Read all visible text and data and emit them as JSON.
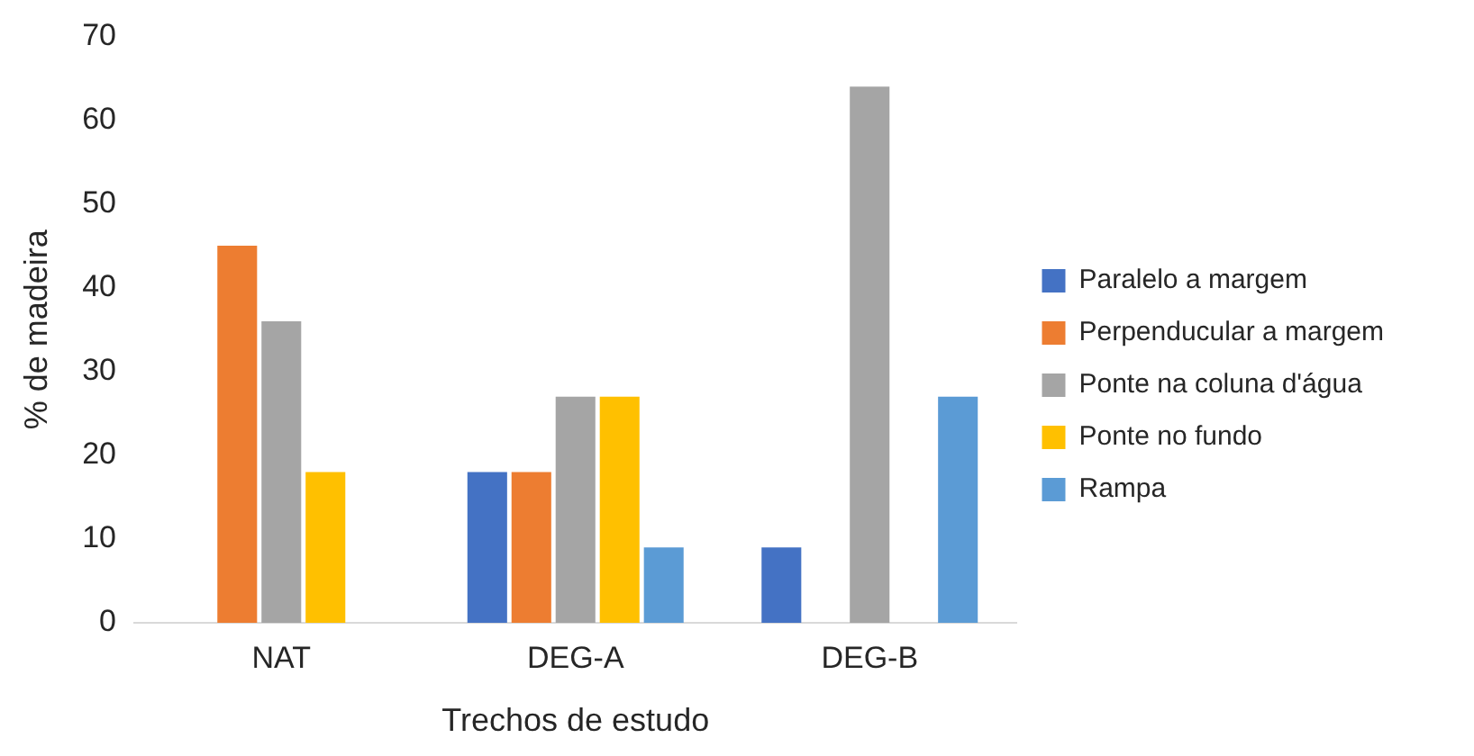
{
  "chart_data": {
    "type": "bar",
    "xlabel": "Trechos de estudo",
    "ylabel": "% de madeira",
    "categories": [
      "NAT",
      "DEG-A",
      "DEG-B"
    ],
    "series": [
      {
        "name": "Paralelo a margem",
        "color": "#4472c4",
        "values": [
          0,
          18,
          9
        ]
      },
      {
        "name": "Perpenducular a margem",
        "color": "#ed7d31",
        "values": [
          45,
          18,
          0
        ]
      },
      {
        "name": "Ponte na coluna d'água",
        "color": "#a5a5a5",
        "values": [
          36,
          27,
          64
        ]
      },
      {
        "name": "Ponte no fundo",
        "color": "#ffc000",
        "values": [
          18,
          27,
          0
        ]
      },
      {
        "name": "Rampa",
        "color": "#5b9bd5",
        "values": [
          0,
          9,
          27
        ]
      }
    ],
    "ylim": [
      0,
      70
    ],
    "yticks": [
      0,
      10,
      20,
      30,
      40,
      50,
      60,
      70
    ],
    "grid": false,
    "legend": "right"
  }
}
